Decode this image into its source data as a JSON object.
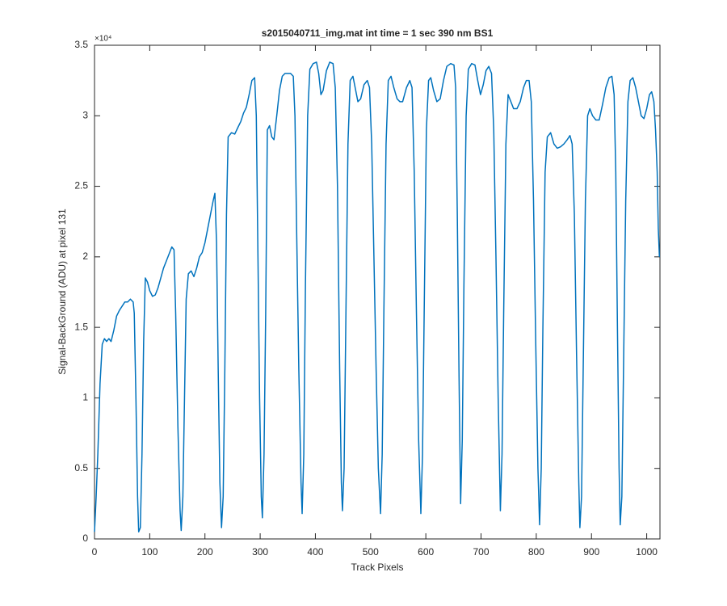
{
  "chart_data": {
    "type": "line",
    "title": "s2015040711_img.mat int time = 1 sec  390 nm BS1",
    "xlabel": "Track Pixels",
    "ylabel": "Signal-BackGround (ADU) at pixel 131",
    "y_exponent_label": "×10⁴",
    "color": "#0072bd",
    "xlim": [
      0,
      1024
    ],
    "ylim": [
      0,
      3.5
    ],
    "xticks": [
      0,
      100,
      200,
      300,
      400,
      500,
      600,
      700,
      800,
      900,
      1000
    ],
    "yticks": [
      0,
      0.5,
      1,
      1.5,
      2,
      2.5,
      3,
      3.5
    ],
    "x": [
      0,
      3,
      6,
      10,
      14,
      18,
      22,
      26,
      30,
      35,
      40,
      45,
      50,
      55,
      60,
      65,
      70,
      72,
      75,
      78,
      80,
      83,
      86,
      89,
      92,
      96,
      100,
      105,
      110,
      115,
      120,
      125,
      130,
      135,
      140,
      144,
      147,
      151,
      155,
      157,
      160,
      163,
      166,
      170,
      175,
      180,
      185,
      190,
      195,
      200,
      205,
      210,
      215,
      218,
      221,
      224,
      227,
      230,
      233,
      236,
      239,
      242,
      248,
      254,
      260,
      265,
      270,
      275,
      280,
      285,
      290,
      293,
      296,
      299,
      302,
      304,
      307,
      310,
      313,
      317,
      321,
      325,
      330,
      335,
      340,
      345,
      350,
      355,
      360,
      363,
      366,
      370,
      374,
      376,
      379,
      382,
      386,
      390,
      396,
      402,
      406,
      410,
      414,
      420,
      426,
      432,
      436,
      440,
      444,
      447,
      449,
      452,
      455,
      459,
      463,
      468,
      472,
      477,
      482,
      488,
      494,
      498,
      502,
      506,
      510,
      514,
      518,
      521,
      524,
      528,
      532,
      537,
      542,
      548,
      553,
      558,
      565,
      571,
      575,
      579,
      583,
      587,
      591,
      594,
      597,
      601,
      605,
      609,
      614,
      620,
      626,
      632,
      638,
      645,
      651,
      654,
      657,
      660,
      663,
      666,
      669,
      673,
      677,
      683,
      689,
      694,
      699,
      704,
      709,
      714,
      719,
      723,
      727,
      731,
      735,
      738,
      741,
      745,
      749,
      754,
      759,
      765,
      771,
      777,
      782,
      787,
      791,
      795,
      799,
      803,
      806,
      809,
      812,
      816,
      820,
      826,
      832,
      838,
      844,
      850,
      856,
      861,
      865,
      869,
      873,
      877,
      879,
      882,
      885,
      889,
      893,
      897,
      902,
      908,
      914,
      920,
      926,
      932,
      937,
      941,
      944,
      947,
      950,
      952,
      955,
      958,
      962,
      966,
      970,
      975,
      980,
      985,
      990,
      995,
      1000,
      1005,
      1009,
      1013,
      1016,
      1019,
      1021,
      1023
    ],
    "values": [
      0.05,
      0.3,
      0.6,
      1.1,
      1.38,
      1.42,
      1.4,
      1.42,
      1.4,
      1.48,
      1.58,
      1.62,
      1.65,
      1.68,
      1.68,
      1.7,
      1.68,
      1.6,
      1.0,
      0.3,
      0.05,
      0.08,
      0.6,
      1.4,
      1.85,
      1.82,
      1.76,
      1.72,
      1.73,
      1.78,
      1.85,
      1.92,
      1.97,
      2.02,
      2.07,
      2.05,
      1.6,
      0.8,
      0.2,
      0.06,
      0.3,
      1.0,
      1.7,
      1.88,
      1.9,
      1.86,
      1.92,
      2.0,
      2.03,
      2.1,
      2.2,
      2.3,
      2.4,
      2.45,
      2.1,
      1.2,
      0.4,
      0.08,
      0.3,
      1.2,
      2.3,
      2.85,
      2.88,
      2.87,
      2.92,
      2.96,
      3.02,
      3.06,
      3.15,
      3.25,
      3.27,
      3.0,
      2.0,
      1.0,
      0.3,
      0.15,
      0.6,
      1.6,
      2.9,
      2.93,
      2.85,
      2.83,
      3.0,
      3.18,
      3.28,
      3.3,
      3.3,
      3.3,
      3.28,
      3.0,
      2.2,
      1.2,
      0.4,
      0.18,
      0.6,
      1.8,
      3.0,
      3.33,
      3.37,
      3.38,
      3.3,
      3.15,
      3.18,
      3.32,
      3.38,
      3.37,
      3.2,
      2.5,
      1.2,
      0.4,
      0.2,
      0.5,
      1.5,
      2.8,
      3.25,
      3.28,
      3.2,
      3.1,
      3.12,
      3.22,
      3.25,
      3.2,
      2.8,
      2.0,
      1.2,
      0.5,
      0.18,
      0.6,
      1.6,
      2.8,
      3.25,
      3.28,
      3.2,
      3.12,
      3.1,
      3.1,
      3.2,
      3.25,
      3.2,
      2.6,
      1.6,
      0.7,
      0.18,
      0.6,
      1.6,
      2.9,
      3.25,
      3.27,
      3.18,
      3.1,
      3.12,
      3.25,
      3.35,
      3.37,
      3.36,
      3.2,
      2.3,
      1.2,
      0.25,
      0.7,
      1.8,
      3.0,
      3.33,
      3.37,
      3.36,
      3.25,
      3.15,
      3.22,
      3.32,
      3.35,
      3.3,
      2.9,
      2.0,
      1.0,
      0.2,
      0.6,
      1.6,
      2.8,
      3.15,
      3.1,
      3.05,
      3.05,
      3.1,
      3.2,
      3.25,
      3.25,
      3.1,
      2.4,
      1.4,
      0.5,
      0.1,
      0.5,
      1.5,
      2.6,
      2.85,
      2.88,
      2.8,
      2.77,
      2.78,
      2.8,
      2.83,
      2.86,
      2.8,
      2.3,
      1.3,
      0.4,
      0.08,
      0.3,
      1.2,
      2.4,
      3.0,
      3.05,
      3.0,
      2.97,
      2.97,
      3.08,
      3.2,
      3.27,
      3.28,
      3.15,
      2.6,
      1.5,
      0.5,
      0.1,
      0.3,
      1.2,
      2.4,
      3.1,
      3.25,
      3.27,
      3.2,
      3.1,
      3.0,
      2.98,
      3.05,
      3.15,
      3.17,
      3.1,
      2.9,
      2.6,
      2.2,
      2.0
    ]
  }
}
